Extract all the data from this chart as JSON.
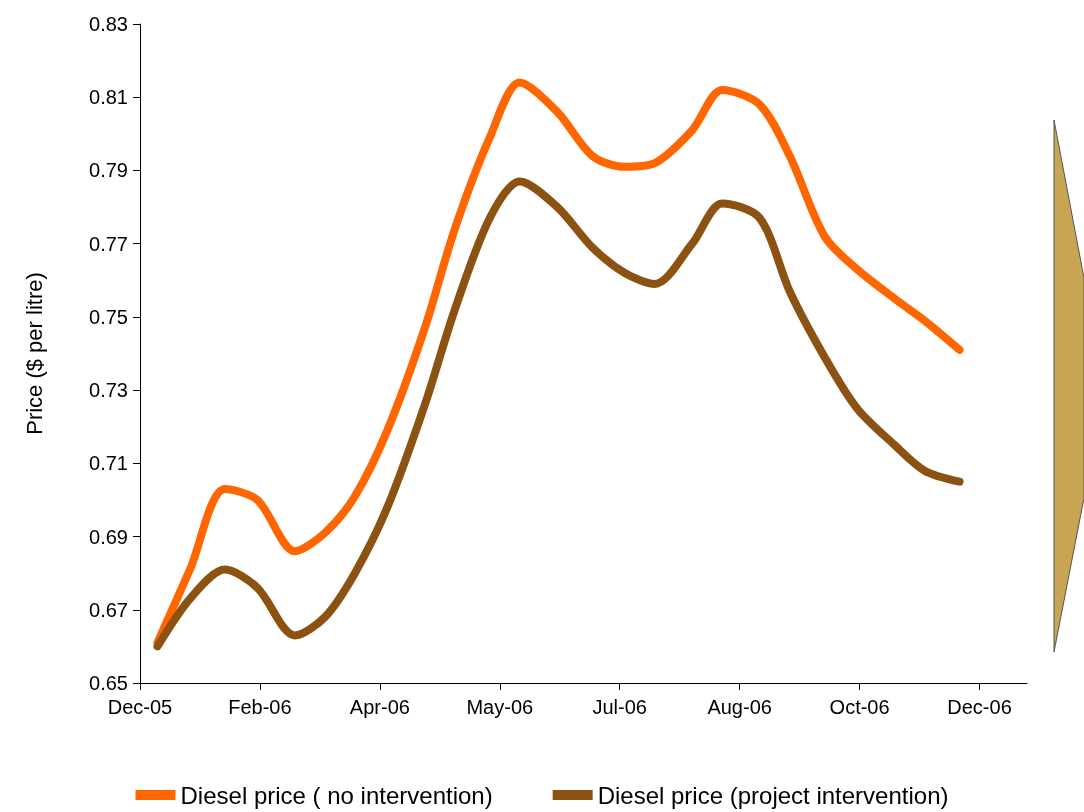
{
  "chart_data": {
    "type": "line",
    "ylabel": "Price ($ per litre)",
    "x": [
      "2006-01-07",
      "2006-01-20",
      "2006-02-03",
      "2006-02-16",
      "2006-03-03",
      "2006-03-15",
      "2006-03-27",
      "2006-04-09",
      "2006-04-24",
      "2006-05-06",
      "2006-05-20",
      "2006-06-01",
      "2006-06-16",
      "2006-06-30",
      "2006-07-13",
      "2006-07-25",
      "2006-08-09",
      "2006-08-21",
      "2006-09-05",
      "2006-09-17",
      "2006-10-01",
      "2006-10-14",
      "2006-10-29",
      "2006-11-10",
      "2006-11-24"
    ],
    "series": [
      {
        "name": "Diesel price ( no intervention)",
        "color": "#ff6600",
        "values": [
          0.661,
          0.681,
          0.703,
          0.7,
          0.686,
          0.691,
          0.701,
          0.719,
          0.747,
          0.774,
          0.799,
          0.814,
          0.806,
          0.794,
          0.791,
          0.792,
          0.801,
          0.812,
          0.808,
          0.794,
          0.772,
          0.763,
          0.755,
          0.749,
          0.741
        ]
      },
      {
        "name": "Diesel price (project intervention)",
        "color": "#8b5211",
        "values": [
          0.66,
          0.673,
          0.681,
          0.676,
          0.663,
          0.668,
          0.68,
          0.698,
          0.726,
          0.752,
          0.777,
          0.787,
          0.78,
          0.769,
          0.762,
          0.759,
          0.77,
          0.781,
          0.777,
          0.757,
          0.739,
          0.725,
          0.715,
          0.708,
          0.705
        ]
      }
    ],
    "xlim": [
      "2005-12-31",
      "2006-12-21"
    ],
    "xticks": [
      {
        "value": "2005-12-31",
        "label": "Dec-05"
      },
      {
        "value": "2006-02-17",
        "label": "Feb-06"
      },
      {
        "value": "2006-04-06",
        "label": "Apr-06"
      },
      {
        "value": "2006-05-24",
        "label": "May-06"
      },
      {
        "value": "2006-07-11",
        "label": "Jul-06"
      },
      {
        "value": "2006-08-28",
        "label": "Aug-06"
      },
      {
        "value": "2006-10-15",
        "label": "Oct-06"
      },
      {
        "value": "2006-12-02",
        "label": "Dec-06"
      }
    ],
    "ylim": [
      0.65,
      0.83
    ],
    "yticks": [
      0.65,
      0.67,
      0.69,
      0.71,
      0.73,
      0.75,
      0.77,
      0.79,
      0.81,
      0.83
    ],
    "grid": false,
    "legend": "bottom",
    "marker": "none",
    "line_style": "solid"
  }
}
